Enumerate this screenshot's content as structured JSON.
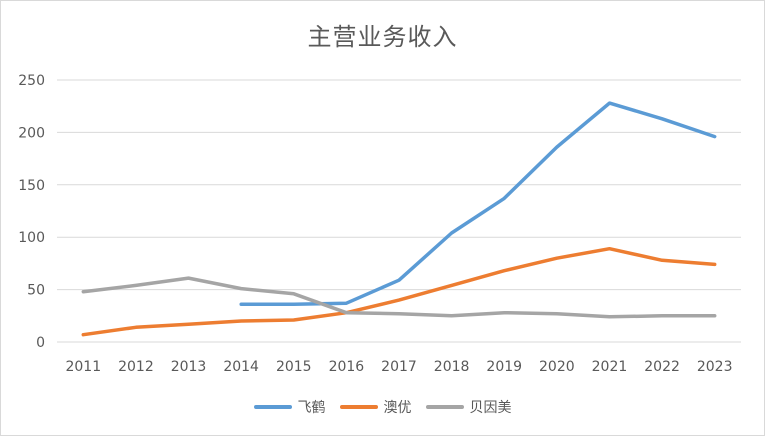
{
  "chart_data": {
    "type": "line",
    "title": "主营业务收入",
    "xlabel": "",
    "ylabel": "",
    "categories": [
      "2011",
      "2012",
      "2013",
      "2014",
      "2015",
      "2016",
      "2017",
      "2018",
      "2019",
      "2020",
      "2021",
      "2022",
      "2023"
    ],
    "ylim": [
      0,
      250
    ],
    "yticks": [
      0,
      50,
      100,
      150,
      200,
      250
    ],
    "grid": true,
    "legend_position": "bottom",
    "series": [
      {
        "name": "飞鹤",
        "color": "#5b9bd5",
        "values": [
          null,
          null,
          null,
          36,
          36,
          37,
          59,
          104,
          137,
          186,
          228,
          213,
          196
        ]
      },
      {
        "name": "澳优",
        "color": "#ed7d31",
        "values": [
          7,
          14,
          17,
          20,
          21,
          28,
          40,
          54,
          68,
          80,
          89,
          78,
          74
        ]
      },
      {
        "name": "贝因美",
        "color": "#a5a5a5",
        "values": [
          48,
          54,
          61,
          51,
          46,
          28,
          27,
          25,
          28,
          27,
          24,
          25,
          25
        ]
      }
    ]
  }
}
